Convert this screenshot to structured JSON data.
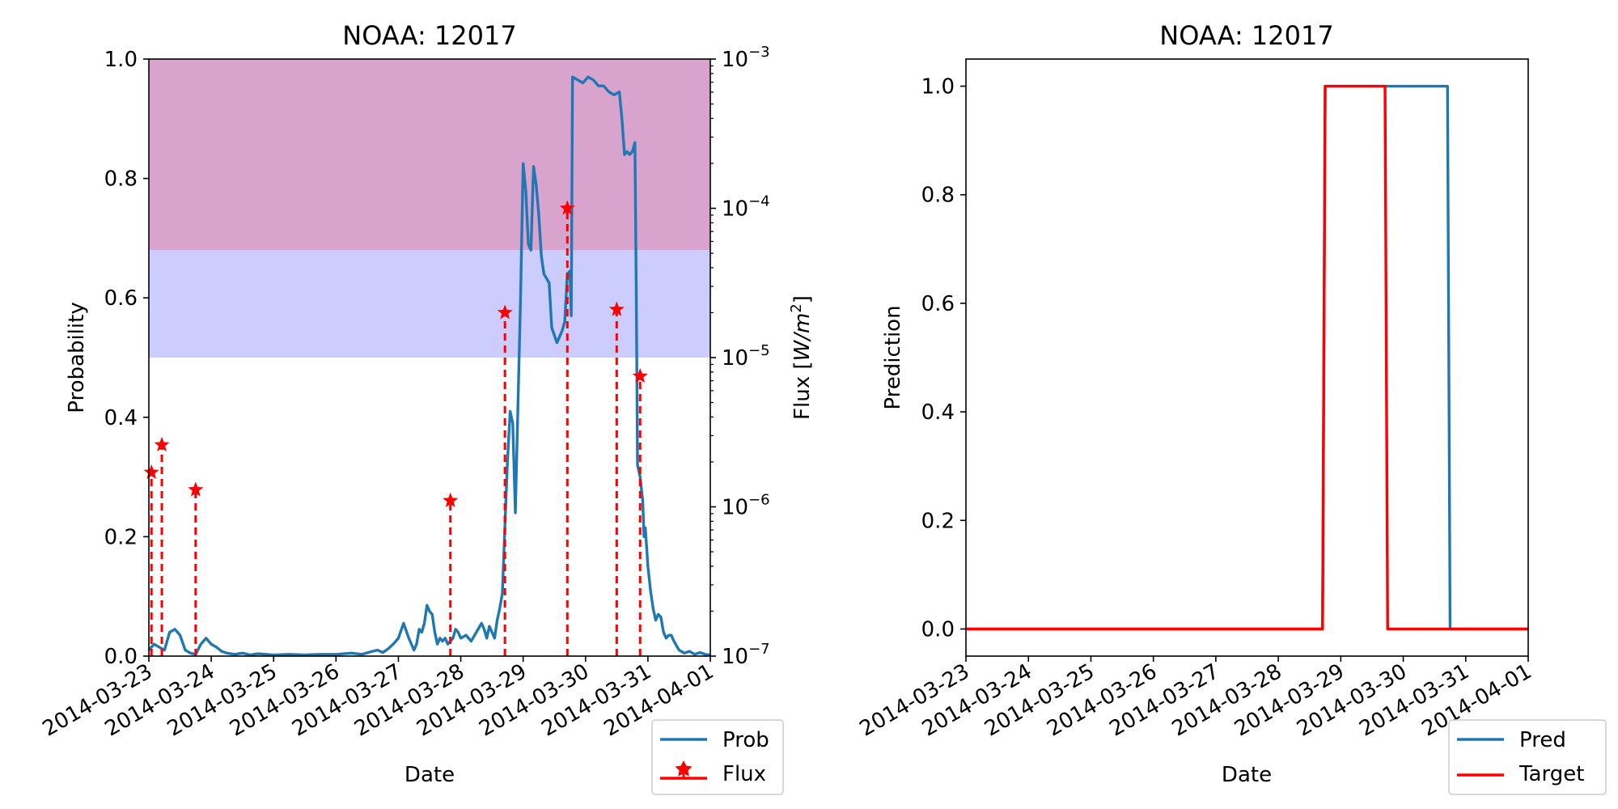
{
  "chart_data": [
    {
      "type": "line",
      "title": "NOAA: 12017",
      "xlabel": "Date",
      "ylabel": "Probability",
      "y2label": "Flux [W/m²]",
      "y2label_parts": {
        "base": "Flux [",
        "unit_italic": "W/m",
        "exp": "2",
        "close": "]"
      },
      "xlim": [
        "2014-03-23",
        "2014-04-01"
      ],
      "ylim": [
        0,
        1.0
      ],
      "y2lim": [
        1e-07,
        0.001
      ],
      "y2scale": "log",
      "xticks": [
        "2014-03-23",
        "2014-03-24",
        "2014-03-25",
        "2014-03-26",
        "2014-03-27",
        "2014-03-28",
        "2014-03-29",
        "2014-03-30",
        "2014-03-31",
        "2014-04-01"
      ],
      "yticks": [
        "0.0",
        "0.2",
        "0.4",
        "0.6",
        "0.8",
        "1.0"
      ],
      "y2ticks": [
        {
          "base": "10",
          "exp": "−7",
          "value": 1e-07
        },
        {
          "base": "10",
          "exp": "−6",
          "value": 1e-06
        },
        {
          "base": "10",
          "exp": "−5",
          "value": 1e-05
        },
        {
          "base": "10",
          "exp": "−4",
          "value": 0.0001
        },
        {
          "base": "10",
          "exp": "−3",
          "value": 0.001
        }
      ],
      "bands": [
        {
          "y0": 0.5,
          "y1": 0.68,
          "color": "#ccccff"
        },
        {
          "y0": 0.68,
          "y1": 1.0,
          "color": "#d8a4cd"
        }
      ],
      "legend_position": "lower-right-outside",
      "series": [
        {
          "name": "Prob",
          "axis": "left",
          "color": "#1f77b4",
          "points": [
            [
              "2014-03-23T00:00",
              0.01
            ],
            [
              "2014-03-23T02:00",
              0.02
            ],
            [
              "2014-03-23T04:00",
              0.015
            ],
            [
              "2014-03-23T06:00",
              0.01
            ],
            [
              "2014-03-23T08:00",
              0.04
            ],
            [
              "2014-03-23T10:00",
              0.045
            ],
            [
              "2014-03-23T12:00",
              0.035
            ],
            [
              "2014-03-23T14:00",
              0.01
            ],
            [
              "2014-03-23T16:00",
              0.005
            ],
            [
              "2014-03-23T18:00",
              0.003
            ],
            [
              "2014-03-23T20:00",
              0.02
            ],
            [
              "2014-03-23T22:00",
              0.03
            ],
            [
              "2014-03-24T00:00",
              0.02
            ],
            [
              "2014-03-24T02:00",
              0.015
            ],
            [
              "2014-03-24T04:00",
              0.008
            ],
            [
              "2014-03-24T06:00",
              0.005
            ],
            [
              "2014-03-24T09:00",
              0.003
            ],
            [
              "2014-03-24T12:00",
              0.005
            ],
            [
              "2014-03-24T15:00",
              0.002
            ],
            [
              "2014-03-24T18:00",
              0.004
            ],
            [
              "2014-03-25T00:00",
              0.002
            ],
            [
              "2014-03-25T06:00",
              0.003
            ],
            [
              "2014-03-25T12:00",
              0.002
            ],
            [
              "2014-03-25T18:00",
              0.003
            ],
            [
              "2014-03-26T00:00",
              0.003
            ],
            [
              "2014-03-26T06:00",
              0.005
            ],
            [
              "2014-03-26T10:00",
              0.003
            ],
            [
              "2014-03-26T14:00",
              0.008
            ],
            [
              "2014-03-26T16:00",
              0.01
            ],
            [
              "2014-03-26T18:00",
              0.006
            ],
            [
              "2014-03-26T20:00",
              0.012
            ],
            [
              "2014-03-26T22:00",
              0.02
            ],
            [
              "2014-03-27T00:00",
              0.03
            ],
            [
              "2014-03-27T02:00",
              0.055
            ],
            [
              "2014-03-27T04:00",
              0.03
            ],
            [
              "2014-03-27T06:00",
              0.01
            ],
            [
              "2014-03-27T07:00",
              0.02
            ],
            [
              "2014-03-27T08:00",
              0.045
            ],
            [
              "2014-03-27T09:00",
              0.04
            ],
            [
              "2014-03-27T10:00",
              0.055
            ],
            [
              "2014-03-27T11:00",
              0.085
            ],
            [
              "2014-03-27T12:00",
              0.075
            ],
            [
              "2014-03-27T13:00",
              0.07
            ],
            [
              "2014-03-27T14:00",
              0.04
            ],
            [
              "2014-03-27T15:00",
              0.02
            ],
            [
              "2014-03-27T16:00",
              0.03
            ],
            [
              "2014-03-27T17:00",
              0.025
            ],
            [
              "2014-03-27T18:00",
              0.03
            ],
            [
              "2014-03-27T19:00",
              0.02
            ],
            [
              "2014-03-27T20:00",
              0.025
            ],
            [
              "2014-03-27T21:00",
              0.03
            ],
            [
              "2014-03-27T22:00",
              0.045
            ],
            [
              "2014-03-27T23:00",
              0.04
            ],
            [
              "2014-03-28T00:00",
              0.03
            ],
            [
              "2014-03-28T02:00",
              0.035
            ],
            [
              "2014-03-28T04:00",
              0.025
            ],
            [
              "2014-03-28T06:00",
              0.04
            ],
            [
              "2014-03-28T08:00",
              0.055
            ],
            [
              "2014-03-28T09:00",
              0.045
            ],
            [
              "2014-03-28T10:00",
              0.03
            ],
            [
              "2014-03-28T11:00",
              0.05
            ],
            [
              "2014-03-28T12:00",
              0.04
            ],
            [
              "2014-03-28T13:00",
              0.03
            ],
            [
              "2014-03-28T14:00",
              0.06
            ],
            [
              "2014-03-28T15:00",
              0.08
            ],
            [
              "2014-03-28T16:00",
              0.105
            ],
            [
              "2014-03-28T17:00",
              0.22
            ],
            [
              "2014-03-28T18:00",
              0.33
            ],
            [
              "2014-03-28T19:00",
              0.41
            ],
            [
              "2014-03-28T20:00",
              0.39
            ],
            [
              "2014-03-28T21:00",
              0.24
            ],
            [
              "2014-03-28T22:00",
              0.42
            ],
            [
              "2014-03-28T23:00",
              0.6
            ],
            [
              "2014-03-29T00:00",
              0.825
            ],
            [
              "2014-03-29T01:00",
              0.78
            ],
            [
              "2014-03-29T02:00",
              0.69
            ],
            [
              "2014-03-29T03:00",
              0.68
            ],
            [
              "2014-03-29T04:00",
              0.82
            ],
            [
              "2014-03-29T05:00",
              0.79
            ],
            [
              "2014-03-29T06:00",
              0.74
            ],
            [
              "2014-03-29T07:00",
              0.67
            ],
            [
              "2014-03-29T08:00",
              0.64
            ],
            [
              "2014-03-29T10:00",
              0.625
            ],
            [
              "2014-03-29T11:00",
              0.55
            ],
            [
              "2014-03-29T13:00",
              0.525
            ],
            [
              "2014-03-29T15:00",
              0.545
            ],
            [
              "2014-03-29T16:00",
              0.56
            ],
            [
              "2014-03-29T17:00",
              0.64
            ],
            [
              "2014-03-29T18:00",
              0.645
            ],
            [
              "2014-03-29T18:30",
              0.57
            ],
            [
              "2014-03-29T19:00",
              0.97
            ],
            [
              "2014-03-29T21:00",
              0.965
            ],
            [
              "2014-03-29T23:00",
              0.96
            ],
            [
              "2014-03-30T01:00",
              0.97
            ],
            [
              "2014-03-30T03:00",
              0.965
            ],
            [
              "2014-03-30T05:00",
              0.955
            ],
            [
              "2014-03-30T07:00",
              0.955
            ],
            [
              "2014-03-30T09:00",
              0.945
            ],
            [
              "2014-03-30T11:00",
              0.94
            ],
            [
              "2014-03-30T13:00",
              0.945
            ],
            [
              "2014-03-30T14:00",
              0.9
            ],
            [
              "2014-03-30T15:00",
              0.84
            ],
            [
              "2014-03-30T16:00",
              0.845
            ],
            [
              "2014-03-30T17:00",
              0.84
            ],
            [
              "2014-03-30T18:00",
              0.845
            ],
            [
              "2014-03-30T19:00",
              0.86
            ],
            [
              "2014-03-30T19:30",
              0.62
            ],
            [
              "2014-03-30T20:00",
              0.32
            ],
            [
              "2014-03-30T21:00",
              0.3
            ],
            [
              "2014-03-30T22:00",
              0.26
            ],
            [
              "2014-03-30T22:30",
              0.2
            ],
            [
              "2014-03-30T23:00",
              0.215
            ],
            [
              "2014-03-31T00:00",
              0.15
            ],
            [
              "2014-03-31T01:00",
              0.11
            ],
            [
              "2014-03-31T02:00",
              0.08
            ],
            [
              "2014-03-31T03:00",
              0.06
            ],
            [
              "2014-03-31T04:00",
              0.07
            ],
            [
              "2014-03-31T05:00",
              0.065
            ],
            [
              "2014-03-31T06:00",
              0.04
            ],
            [
              "2014-03-31T07:00",
              0.03
            ],
            [
              "2014-03-31T08:00",
              0.035
            ],
            [
              "2014-03-31T09:00",
              0.035
            ],
            [
              "2014-03-31T10:00",
              0.025
            ],
            [
              "2014-03-31T12:00",
              0.01
            ],
            [
              "2014-03-31T14:00",
              0.005
            ],
            [
              "2014-03-31T16:00",
              0.008
            ],
            [
              "2014-03-31T18:00",
              0.003
            ],
            [
              "2014-03-31T20:00",
              0.006
            ],
            [
              "2014-03-31T22:00",
              0.003
            ],
            [
              "2014-04-01T00:00",
              0.002
            ]
          ]
        },
        {
          "name": "Flux",
          "axis": "right",
          "color": "#ff0000",
          "style": "stem-dashed",
          "marker": "star",
          "points": [
            [
              "2014-03-23T01:00",
              1.7e-06
            ],
            [
              "2014-03-23T05:00",
              2.6e-06
            ],
            [
              "2014-03-23T18:00",
              1.3e-06
            ],
            [
              "2014-03-27T20:00",
              1.1e-06
            ],
            [
              "2014-03-28T17:00",
              2e-05
            ],
            [
              "2014-03-29T17:00",
              0.0001
            ],
            [
              "2014-03-30T12:00",
              2.1e-05
            ],
            [
              "2014-03-30T21:00",
              7.5e-06
            ]
          ]
        }
      ]
    },
    {
      "type": "line",
      "title": "NOAA: 12017",
      "xlabel": "Date",
      "ylabel": "Prediction",
      "xlim": [
        "2014-03-23",
        "2014-04-01"
      ],
      "ylim": [
        -0.05,
        1.05
      ],
      "xticks": [
        "2014-03-23",
        "2014-03-24",
        "2014-03-25",
        "2014-03-26",
        "2014-03-27",
        "2014-03-28",
        "2014-03-29",
        "2014-03-30",
        "2014-03-31",
        "2014-04-01"
      ],
      "yticks": [
        "0.0",
        "0.2",
        "0.4",
        "0.6",
        "0.8",
        "1.0"
      ],
      "legend_position": "lower-right-outside",
      "series": [
        {
          "name": "Pred",
          "color": "#1f77b4",
          "points": [
            [
              "2014-03-23T00:00",
              0
            ],
            [
              "2014-03-28T17:00",
              0
            ],
            [
              "2014-03-28T18:00",
              1
            ],
            [
              "2014-03-30T17:00",
              1
            ],
            [
              "2014-03-30T18:00",
              0
            ],
            [
              "2014-04-01T00:00",
              0
            ]
          ]
        },
        {
          "name": "Target",
          "color": "#ff0000",
          "points": [
            [
              "2014-03-23T00:00",
              0
            ],
            [
              "2014-03-28T17:00",
              0
            ],
            [
              "2014-03-28T18:00",
              1
            ],
            [
              "2014-03-29T17:00",
              1
            ],
            [
              "2014-03-29T18:00",
              0
            ],
            [
              "2014-04-01T00:00",
              0
            ]
          ]
        }
      ]
    }
  ]
}
